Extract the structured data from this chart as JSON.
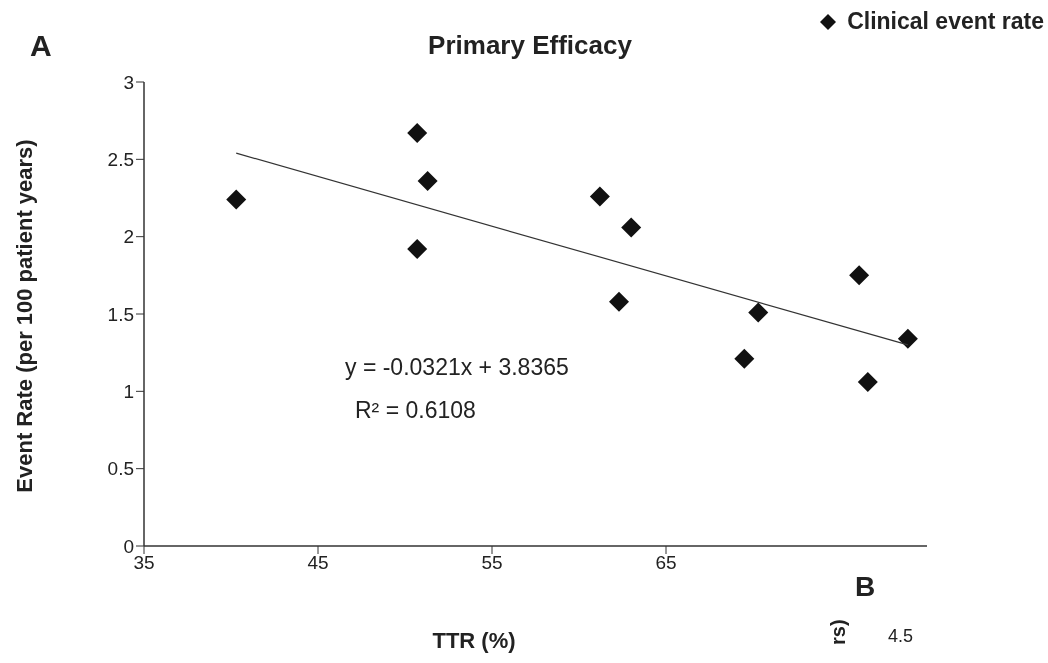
{
  "chart_data": {
    "type": "scatter",
    "title": "Primary Efficacy",
    "xlabel": "TTR (%)",
    "ylabel": "Event Rate (per 100 patient years)",
    "annotations": [
      "A",
      "y = -0.0321x + 3.8365",
      "R² = 0.6108",
      "B",
      "rs)",
      "4.5"
    ],
    "xlim": [
      35,
      80
    ],
    "xticks": [
      35,
      45,
      55,
      65
    ],
    "ylim": [
      0,
      3
    ],
    "yticks": [
      0,
      0.5,
      1,
      1.5,
      2,
      2.5,
      3
    ],
    "legend": "top right",
    "series": [
      {
        "name": "Clinical event rate",
        "color": "#111111",
        "marker": "diamond",
        "x": [
          40.3,
          50.7,
          51.3,
          50.7,
          61.2,
          63.0,
          62.3,
          70.3,
          69.5,
          76.1,
          76.6,
          78.9
        ],
        "values": [
          2.24,
          2.67,
          2.36,
          1.92,
          2.26,
          2.06,
          1.58,
          1.51,
          1.21,
          1.75,
          1.06,
          1.34
        ]
      },
      {
        "type": "line",
        "color": "#333333",
        "marker": "none",
        "x": [
          40.3,
          78.9
        ],
        "values": [
          2.54,
          1.3
        ]
      }
    ]
  }
}
